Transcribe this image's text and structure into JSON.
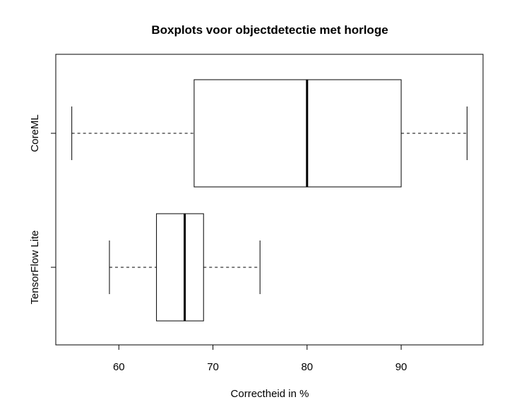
{
  "chart_data": {
    "type": "boxplot",
    "orientation": "horizontal",
    "title": "Boxplots voor objectdetectie met horloge",
    "xlabel": "Correctheid in %",
    "ylabel": "",
    "xlim": [
      53.3,
      98.7
    ],
    "xticks": [
      60,
      70,
      80,
      90
    ],
    "grid": false,
    "categories": [
      "CoreML",
      "TensorFlow Lite"
    ],
    "boxes": [
      {
        "label": "CoreML",
        "whisker_low": 55,
        "q1": 68,
        "median": 80,
        "q3": 90,
        "whisker_high": 97
      },
      {
        "label": "TensorFlow Lite",
        "whisker_low": 59,
        "q1": 64,
        "median": 67,
        "q3": 69,
        "whisker_high": 75
      }
    ]
  }
}
